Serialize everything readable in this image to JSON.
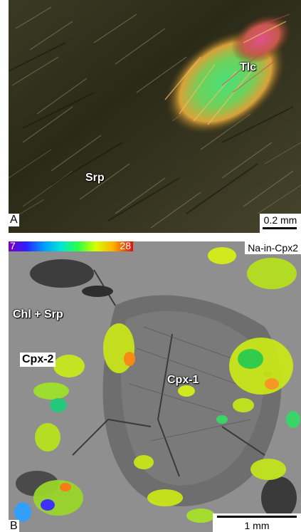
{
  "panel_a": {
    "panel_letter": "A",
    "labels": {
      "talc": "Tlc",
      "serpentine": "Srp"
    },
    "scale_bar": "0.2 mm"
  },
  "panel_b": {
    "panel_letter": "B",
    "map_title": "Na-in-Cpx2",
    "color_scale": {
      "min": "7",
      "max": "28"
    },
    "labels": {
      "chlorite_serpentine": "Chl + Srp",
      "cpx2": "Cpx-2",
      "cpx1": "Cpx-1"
    },
    "scale_bar": "1 mm"
  }
}
